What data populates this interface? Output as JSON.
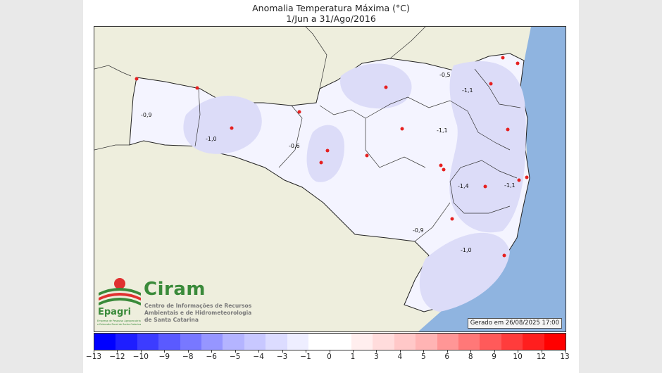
{
  "title": {
    "line1": "Anomalia Temperatura Máxima (°C)",
    "line2": "1/Jun a 31/Ago/2016"
  },
  "stamp": "Gerado em 26/08/2025 17:00",
  "logo": {
    "brand": "Ciram",
    "subtitle_lines": [
      "Centro de Informações de Recursos",
      "Ambientais e de Hidrometeorologia",
      "de Santa Catarina"
    ],
    "org": "Epagri",
    "org_small_lines": [
      "Empresa de Pesquisa Agropecuária",
      "e Extensão Rural de Santa Catarina"
    ]
  },
  "isolines": [
    {
      "label": "-0,9"
    },
    {
      "label": "-1,0"
    },
    {
      "label": "-0,6"
    },
    {
      "label": "-0,5"
    },
    {
      "label": "-1,1"
    },
    {
      "label": "-1,1"
    },
    {
      "label": "-1,4"
    },
    {
      "label": "-1,1"
    },
    {
      "label": "-0,9"
    },
    {
      "label": "-1,0"
    }
  ],
  "colorbar": {
    "colors": [
      "#0000ff",
      "#1e1eff",
      "#3c3cff",
      "#5a5aff",
      "#7878ff",
      "#9696ff",
      "#b4b4ff",
      "#c8c8ff",
      "#dcdcff",
      "#eeeeff",
      "#ffffff",
      "#ffffff",
      "#ffeeee",
      "#ffdcdc",
      "#ffc8c8",
      "#ffb4b4",
      "#ff9696",
      "#ff7878",
      "#ff5a5a",
      "#ff3c3c",
      "#ff1e1e",
      "#ff0000"
    ],
    "ticks": [
      "−13",
      "−12",
      "−10",
      "−9",
      "−8",
      "−6",
      "−5",
      "−4",
      "−3",
      "−1",
      "0",
      "1",
      "3",
      "4",
      "5",
      "6",
      "8",
      "9",
      "10",
      "12",
      "13"
    ]
  },
  "colors": {
    "land_outside": "#eeeedd",
    "ocean": "#8fb4e0",
    "state_fill": "#f4f4ff",
    "anomaly_shade": "#dcdcf8",
    "station_dot": "#e62020"
  }
}
